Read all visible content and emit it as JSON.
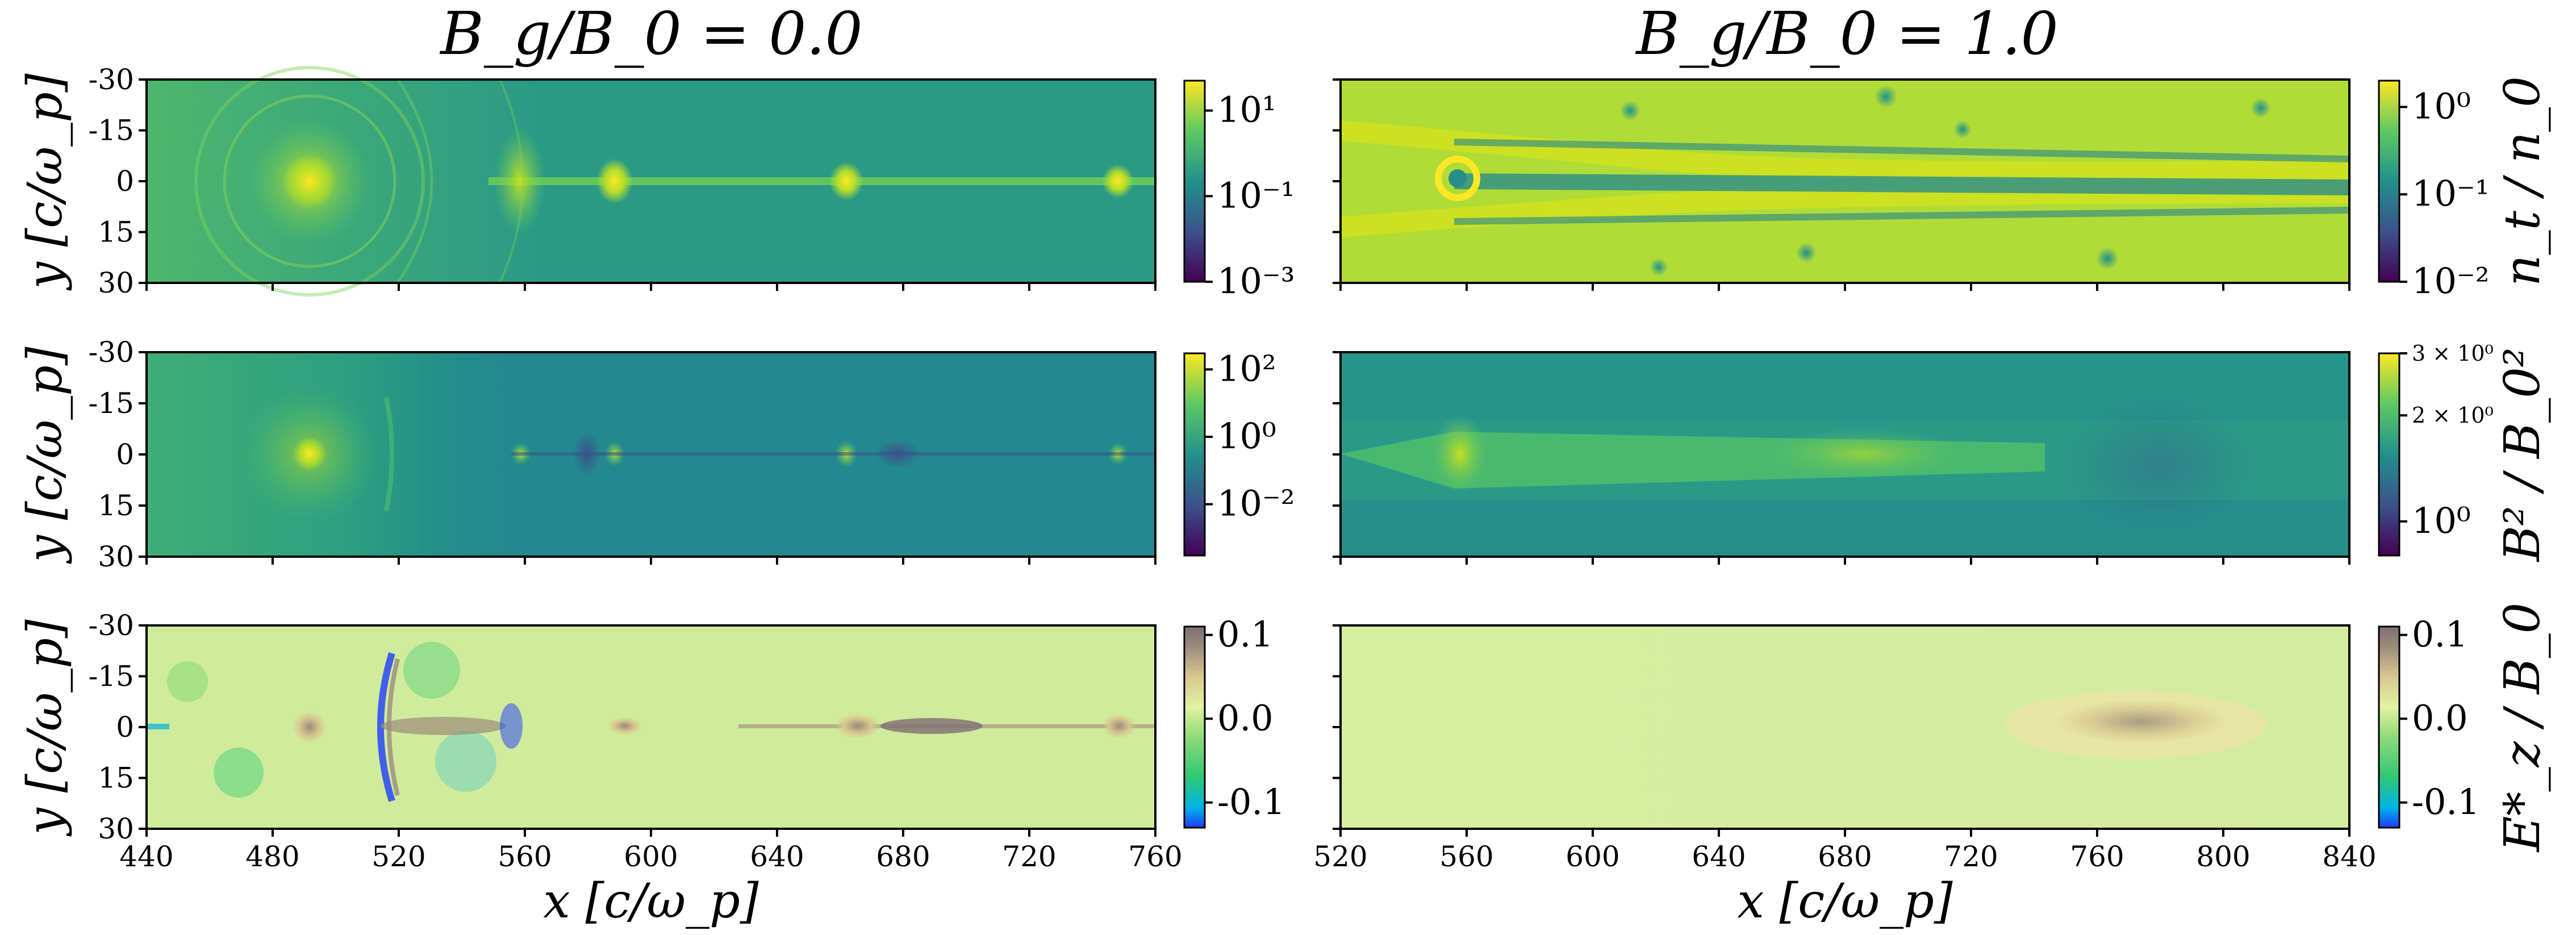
{
  "chart_data": {
    "type": "heatmap",
    "colors": {
      "viridis": [
        "#440154",
        "#3b528b",
        "#21918c",
        "#5ec962",
        "#fde725"
      ],
      "terrain": [
        "#1e3cff",
        "#00b4e6",
        "#2ec873",
        "#8edb7a",
        "#e3f2a0",
        "#d9c78f",
        "#9c8b7d",
        "#806e73"
      ]
    },
    "column_titles": [
      "B_g/B_0 = 0.0",
      "B_g/B_0 = 1.0"
    ],
    "y_label": "y  [c/ω_p]",
    "y_ticks": [
      "-30",
      "-15",
      "0",
      "15",
      "30"
    ],
    "y_range": [
      -30,
      30
    ],
    "x_label": "x  [c/ω_p]",
    "columns": [
      {
        "x_range": [
          440,
          760
        ],
        "x_ticks": [
          "440",
          "480",
          "520",
          "560",
          "600",
          "640",
          "680",
          "720",
          "760"
        ]
      },
      {
        "x_range": [
          520,
          840
        ],
        "x_ticks": [
          "520",
          "560",
          "600",
          "640",
          "680",
          "720",
          "760",
          "800",
          "840"
        ]
      }
    ],
    "rows": [
      {
        "quantity": "n_t / n_0",
        "colormap": "viridis",
        "scale": "log",
        "colorbars": [
          {
            "ticks": [
              "10^1",
              "10^-1",
              "10^-3"
            ],
            "range": [
              0.001,
              50
            ]
          },
          {
            "ticks": [
              "10^0",
              "10^-1",
              "10^-2"
            ],
            "range": [
              0.01,
              2
            ]
          }
        ]
      },
      {
        "quantity": "B^2 / B_0^2",
        "colormap": "viridis",
        "scale": "log",
        "colorbars": [
          {
            "ticks": [
              "10^2",
              "10^0",
              "10^-2"
            ],
            "range": [
              0.0003,
              300
            ]
          },
          {
            "ticks": [
              "3 × 10^0",
              "2 × 10^0",
              "10^0"
            ],
            "range": [
              0.8,
              3
            ]
          }
        ]
      },
      {
        "quantity": "E*_z / B_0",
        "colormap": "terrain",
        "scale": "linear",
        "colorbars": [
          {
            "ticks": [
              "0.1",
              "0.0",
              "-0.1"
            ],
            "range": [
              -0.13,
              0.11
            ]
          },
          {
            "ticks": [
              "0.1",
              "0.0",
              "-0.1"
            ],
            "range": [
              -0.13,
              0.11
            ]
          }
        ]
      }
    ]
  }
}
